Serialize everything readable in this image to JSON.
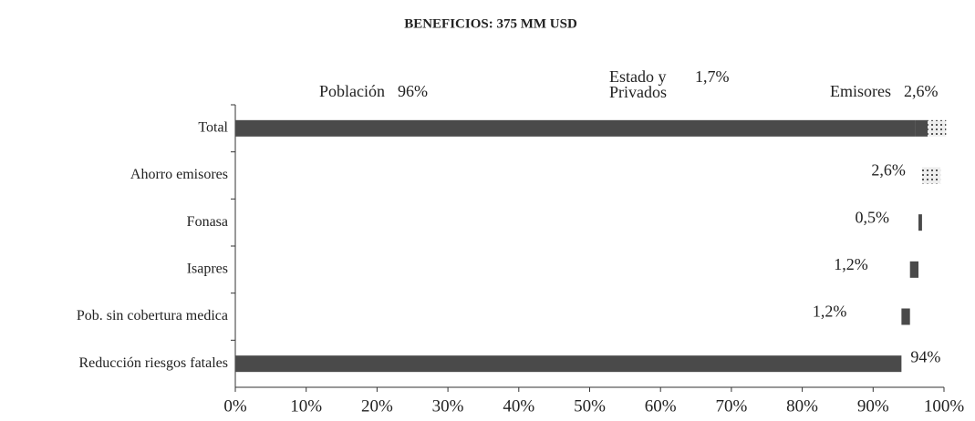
{
  "chart_data": {
    "type": "waterfall_bar",
    "title": "BENEFICIOS: 375 MM USD",
    "categories": [
      "Reducción riesgos fatales",
      "Pob. sin cobertura medica",
      "Isapres",
      "Fonasa",
      "Ahorro emisores"
    ],
    "values": [
      94,
      1.2,
      1.2,
      0.5,
      2.6
    ],
    "value_labels": [
      "94%",
      "1,2%",
      "1,2%",
      "0,5%",
      "2,6%"
    ],
    "color": "#4a4a4a",
    "total": {
      "name": "Total",
      "segments": [
        {
          "name": "Población",
          "value": 96,
          "label": "96%",
          "color": "#4a4a4a"
        },
        {
          "name": "Estado y Privados",
          "value": 1.7,
          "label": "1,7%",
          "color": "#4a4a4a"
        },
        {
          "name": "Emisores",
          "value": 2.6,
          "label": "2,6%",
          "color": "pattern"
        }
      ]
    },
    "xlim": [
      0,
      100
    ],
    "xticks": [
      {
        "value": 0,
        "label": "0%"
      },
      {
        "value": 10,
        "label": "10%"
      },
      {
        "value": 20,
        "label": "20%"
      },
      {
        "value": 30,
        "label": "30%"
      },
      {
        "value": 40,
        "label": "40%"
      },
      {
        "value": 50,
        "label": "50%"
      },
      {
        "value": 60,
        "label": "60%"
      },
      {
        "value": 70,
        "label": "70%"
      },
      {
        "value": 80,
        "label": "80%"
      },
      {
        "value": 90,
        "label": "90%"
      },
      {
        "value": 100,
        "label": "100%"
      }
    ],
    "grid": false
  }
}
